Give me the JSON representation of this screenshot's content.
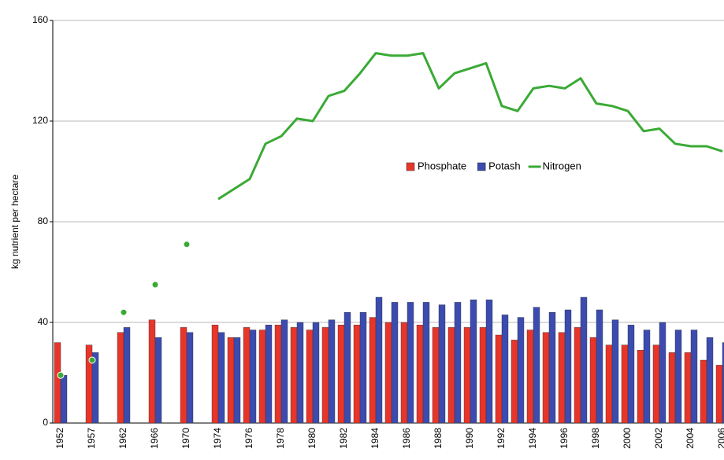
{
  "chart_data": {
    "type": "bar",
    "y_label": "kg nutrient per hectare",
    "categories": [
      "1952",
      null,
      "1957",
      null,
      "1962",
      null,
      "1966",
      null,
      "1970",
      null,
      "1974",
      null,
      "1976",
      null,
      "1978",
      null,
      "1980",
      null,
      "1982",
      null,
      "1984",
      null,
      "1986",
      null,
      "1988",
      null,
      "1990",
      null,
      "1992",
      null,
      "1994",
      null,
      "1996",
      null,
      "1998",
      null,
      "2000",
      null,
      "2002",
      null,
      "2004",
      null,
      "2006"
    ],
    "series": [
      {
        "name": "Phosphate",
        "type": "bar",
        "color": "#e8352a",
        "values": [
          32,
          null,
          31,
          null,
          36,
          null,
          41,
          null,
          38,
          null,
          39,
          34,
          38,
          37,
          39,
          38,
          37,
          38,
          39,
          39,
          42,
          40,
          40,
          39,
          38,
          38,
          38,
          38,
          35,
          33,
          37,
          36,
          36,
          38,
          34,
          31,
          31,
          29,
          31,
          28,
          28,
          25,
          23
        ]
      },
      {
        "name": "Potash",
        "type": "bar",
        "color": "#3b4bb0",
        "values": [
          19,
          null,
          28,
          null,
          38,
          null,
          34,
          null,
          36,
          null,
          36,
          34,
          37,
          39,
          41,
          40,
          40,
          41,
          44,
          44,
          50,
          48,
          48,
          48,
          47,
          48,
          49,
          49,
          43,
          42,
          46,
          44,
          45,
          50,
          45,
          41,
          39,
          37,
          40,
          37,
          37,
          34,
          32
        ]
      },
      {
        "name": "Nitrogen",
        "type": "line",
        "color": "#3aaa35",
        "values": [
          19,
          null,
          25,
          null,
          44,
          null,
          55,
          null,
          71,
          null,
          89,
          93,
          97,
          111,
          114,
          121,
          120,
          130,
          132,
          139,
          147,
          146,
          146,
          147,
          133,
          139,
          141,
          143,
          126,
          124,
          133,
          134,
          133,
          137,
          127,
          126,
          124,
          116,
          117,
          111,
          110,
          110,
          108
        ]
      }
    ],
    "ylim": [
      0,
      160
    ],
    "yticks": [
      0,
      40,
      80,
      120,
      160
    ],
    "grid": true
  }
}
